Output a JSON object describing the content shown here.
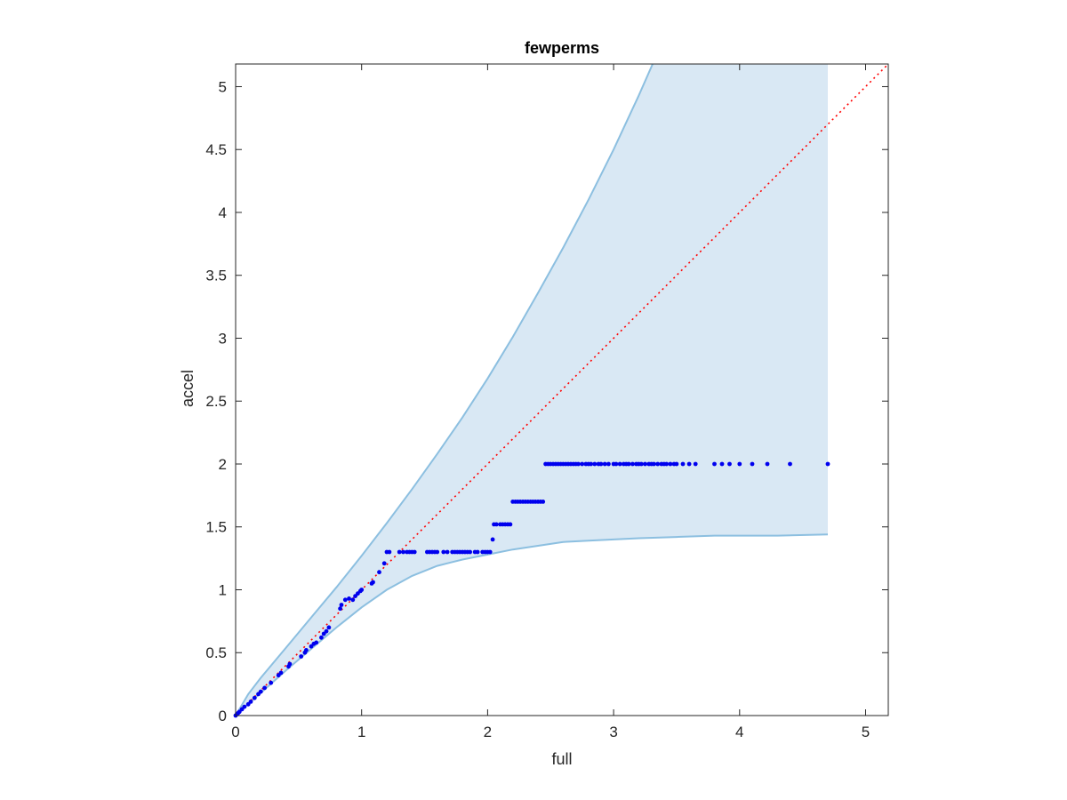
{
  "chart_data": {
    "type": "scatter",
    "title": "fewperms",
    "xlabel": "full",
    "ylabel": "accel",
    "xlim": [
      0,
      5.18
    ],
    "ylim": [
      0,
      5.18
    ],
    "xticks": [
      0,
      1,
      2,
      3,
      4,
      5
    ],
    "xtick_labels": [
      "0",
      "1",
      "2",
      "3",
      "4",
      "5"
    ],
    "yticks": [
      0,
      0.5,
      1,
      1.5,
      2,
      2.5,
      3,
      3.5,
      4,
      4.5,
      5
    ],
    "ytick_labels": [
      "0",
      "0.5",
      "1",
      "1.5",
      "2",
      "2.5",
      "3",
      "3.5",
      "4",
      "4.5",
      "5"
    ],
    "grid": false,
    "colors": {
      "band_fill": "#d9e8f4",
      "band_edge": "#8cbfe0",
      "points": "#0000ee",
      "reference": "#ff0000",
      "axis": "#262626"
    },
    "band_upper": {
      "x": [
        0,
        0.1,
        0.2,
        0.4,
        0.6,
        0.8,
        1.0,
        1.2,
        1.4,
        1.6,
        1.8,
        2.0,
        2.2,
        2.4,
        2.6,
        2.8,
        3.0,
        3.2,
        3.31
      ],
      "y": [
        0,
        0.17,
        0.3,
        0.54,
        0.78,
        1.02,
        1.27,
        1.53,
        1.8,
        2.08,
        2.37,
        2.68,
        3.01,
        3.36,
        3.72,
        4.1,
        4.5,
        4.93,
        5.18
      ]
    },
    "band_lower": {
      "x": [
        0,
        0.1,
        0.2,
        0.4,
        0.6,
        0.8,
        1.0,
        1.2,
        1.4,
        1.6,
        1.8,
        2.0,
        2.2,
        2.4,
        2.6,
        2.8,
        3.0,
        3.2,
        3.5,
        3.8,
        4.0,
        4.3,
        4.7
      ],
      "y": [
        0,
        0.09,
        0.18,
        0.36,
        0.53,
        0.7,
        0.86,
        1.0,
        1.11,
        1.19,
        1.24,
        1.28,
        1.32,
        1.35,
        1.38,
        1.39,
        1.4,
        1.41,
        1.42,
        1.43,
        1.43,
        1.43,
        1.44
      ]
    },
    "band_right_x": 4.7,
    "reference_line": {
      "x": [
        0,
        5.18
      ],
      "y": [
        0,
        5.18
      ]
    },
    "series": [
      {
        "x": [
          0.0,
          0.01,
          0.02,
          0.03,
          0.05,
          0.07,
          0.1,
          0.12,
          0.15,
          0.18,
          0.2,
          0.23,
          0.28,
          0.34,
          0.36,
          0.42,
          0.43,
          0.52,
          0.55,
          0.56,
          0.6,
          0.62,
          0.64,
          0.68,
          0.7,
          0.72,
          0.74,
          0.83,
          0.84,
          0.87,
          0.9,
          0.93,
          0.95,
          0.97,
          0.99,
          1.0,
          1.08,
          1.09,
          1.14,
          1.18,
          1.2,
          1.22,
          1.3,
          1.33,
          1.36,
          1.38,
          1.4,
          1.42,
          1.52,
          1.54,
          1.56,
          1.58,
          1.6,
          1.65,
          1.68,
          1.72,
          1.74,
          1.76,
          1.78,
          1.8,
          1.82,
          1.84,
          1.86,
          1.9,
          1.92,
          1.96,
          1.98,
          2.0,
          2.02,
          2.04,
          2.05,
          2.07,
          2.1,
          2.12,
          2.14,
          2.16,
          2.18,
          2.2,
          2.22,
          2.24,
          2.26,
          2.28,
          2.3,
          2.32,
          2.34,
          2.36,
          2.38,
          2.4,
          2.42,
          2.44,
          2.46,
          2.48,
          2.5,
          2.52,
          2.54,
          2.56,
          2.58,
          2.6,
          2.62,
          2.64,
          2.66,
          2.68,
          2.7,
          2.72,
          2.75,
          2.78,
          2.8,
          2.82,
          2.85,
          2.88,
          2.9,
          2.93,
          2.96,
          3.0,
          3.02,
          3.05,
          3.08,
          3.1,
          3.12,
          3.15,
          3.18,
          3.2,
          3.22,
          3.25,
          3.28,
          3.3,
          3.32,
          3.35,
          3.38,
          3.4,
          3.42,
          3.45,
          3.48,
          3.5,
          3.55,
          3.6,
          3.65,
          3.8,
          3.86,
          3.92,
          4.0,
          4.1,
          4.22,
          4.4,
          4.7
        ],
        "y": [
          0.0,
          0.01,
          0.02,
          0.03,
          0.05,
          0.07,
          0.09,
          0.11,
          0.14,
          0.17,
          0.19,
          0.22,
          0.26,
          0.32,
          0.34,
          0.39,
          0.41,
          0.47,
          0.5,
          0.52,
          0.55,
          0.57,
          0.58,
          0.62,
          0.65,
          0.67,
          0.7,
          0.85,
          0.88,
          0.92,
          0.93,
          0.92,
          0.95,
          0.97,
          0.99,
          1.0,
          1.05,
          1.06,
          1.14,
          1.21,
          1.3,
          1.3,
          1.3,
          1.3,
          1.3,
          1.3,
          1.3,
          1.3,
          1.3,
          1.3,
          1.3,
          1.3,
          1.3,
          1.3,
          1.3,
          1.3,
          1.3,
          1.3,
          1.3,
          1.3,
          1.3,
          1.3,
          1.3,
          1.3,
          1.3,
          1.3,
          1.3,
          1.3,
          1.3,
          1.4,
          1.52,
          1.52,
          1.52,
          1.52,
          1.52,
          1.52,
          1.52,
          1.7,
          1.7,
          1.7,
          1.7,
          1.7,
          1.7,
          1.7,
          1.7,
          1.7,
          1.7,
          1.7,
          1.7,
          1.7,
          2.0,
          2.0,
          2.0,
          2.0,
          2.0,
          2.0,
          2.0,
          2.0,
          2.0,
          2.0,
          2.0,
          2.0,
          2.0,
          2.0,
          2.0,
          2.0,
          2.0,
          2.0,
          2.0,
          2.0,
          2.0,
          2.0,
          2.0,
          2.0,
          2.0,
          2.0,
          2.0,
          2.0,
          2.0,
          2.0,
          2.0,
          2.0,
          2.0,
          2.0,
          2.0,
          2.0,
          2.0,
          2.0,
          2.0,
          2.0,
          2.0,
          2.0,
          2.0,
          2.0,
          2.0,
          2.0,
          2.0,
          2.0,
          2.0,
          2.0,
          2.0,
          2.0,
          2.0,
          2.0,
          2.0
        ]
      }
    ]
  }
}
